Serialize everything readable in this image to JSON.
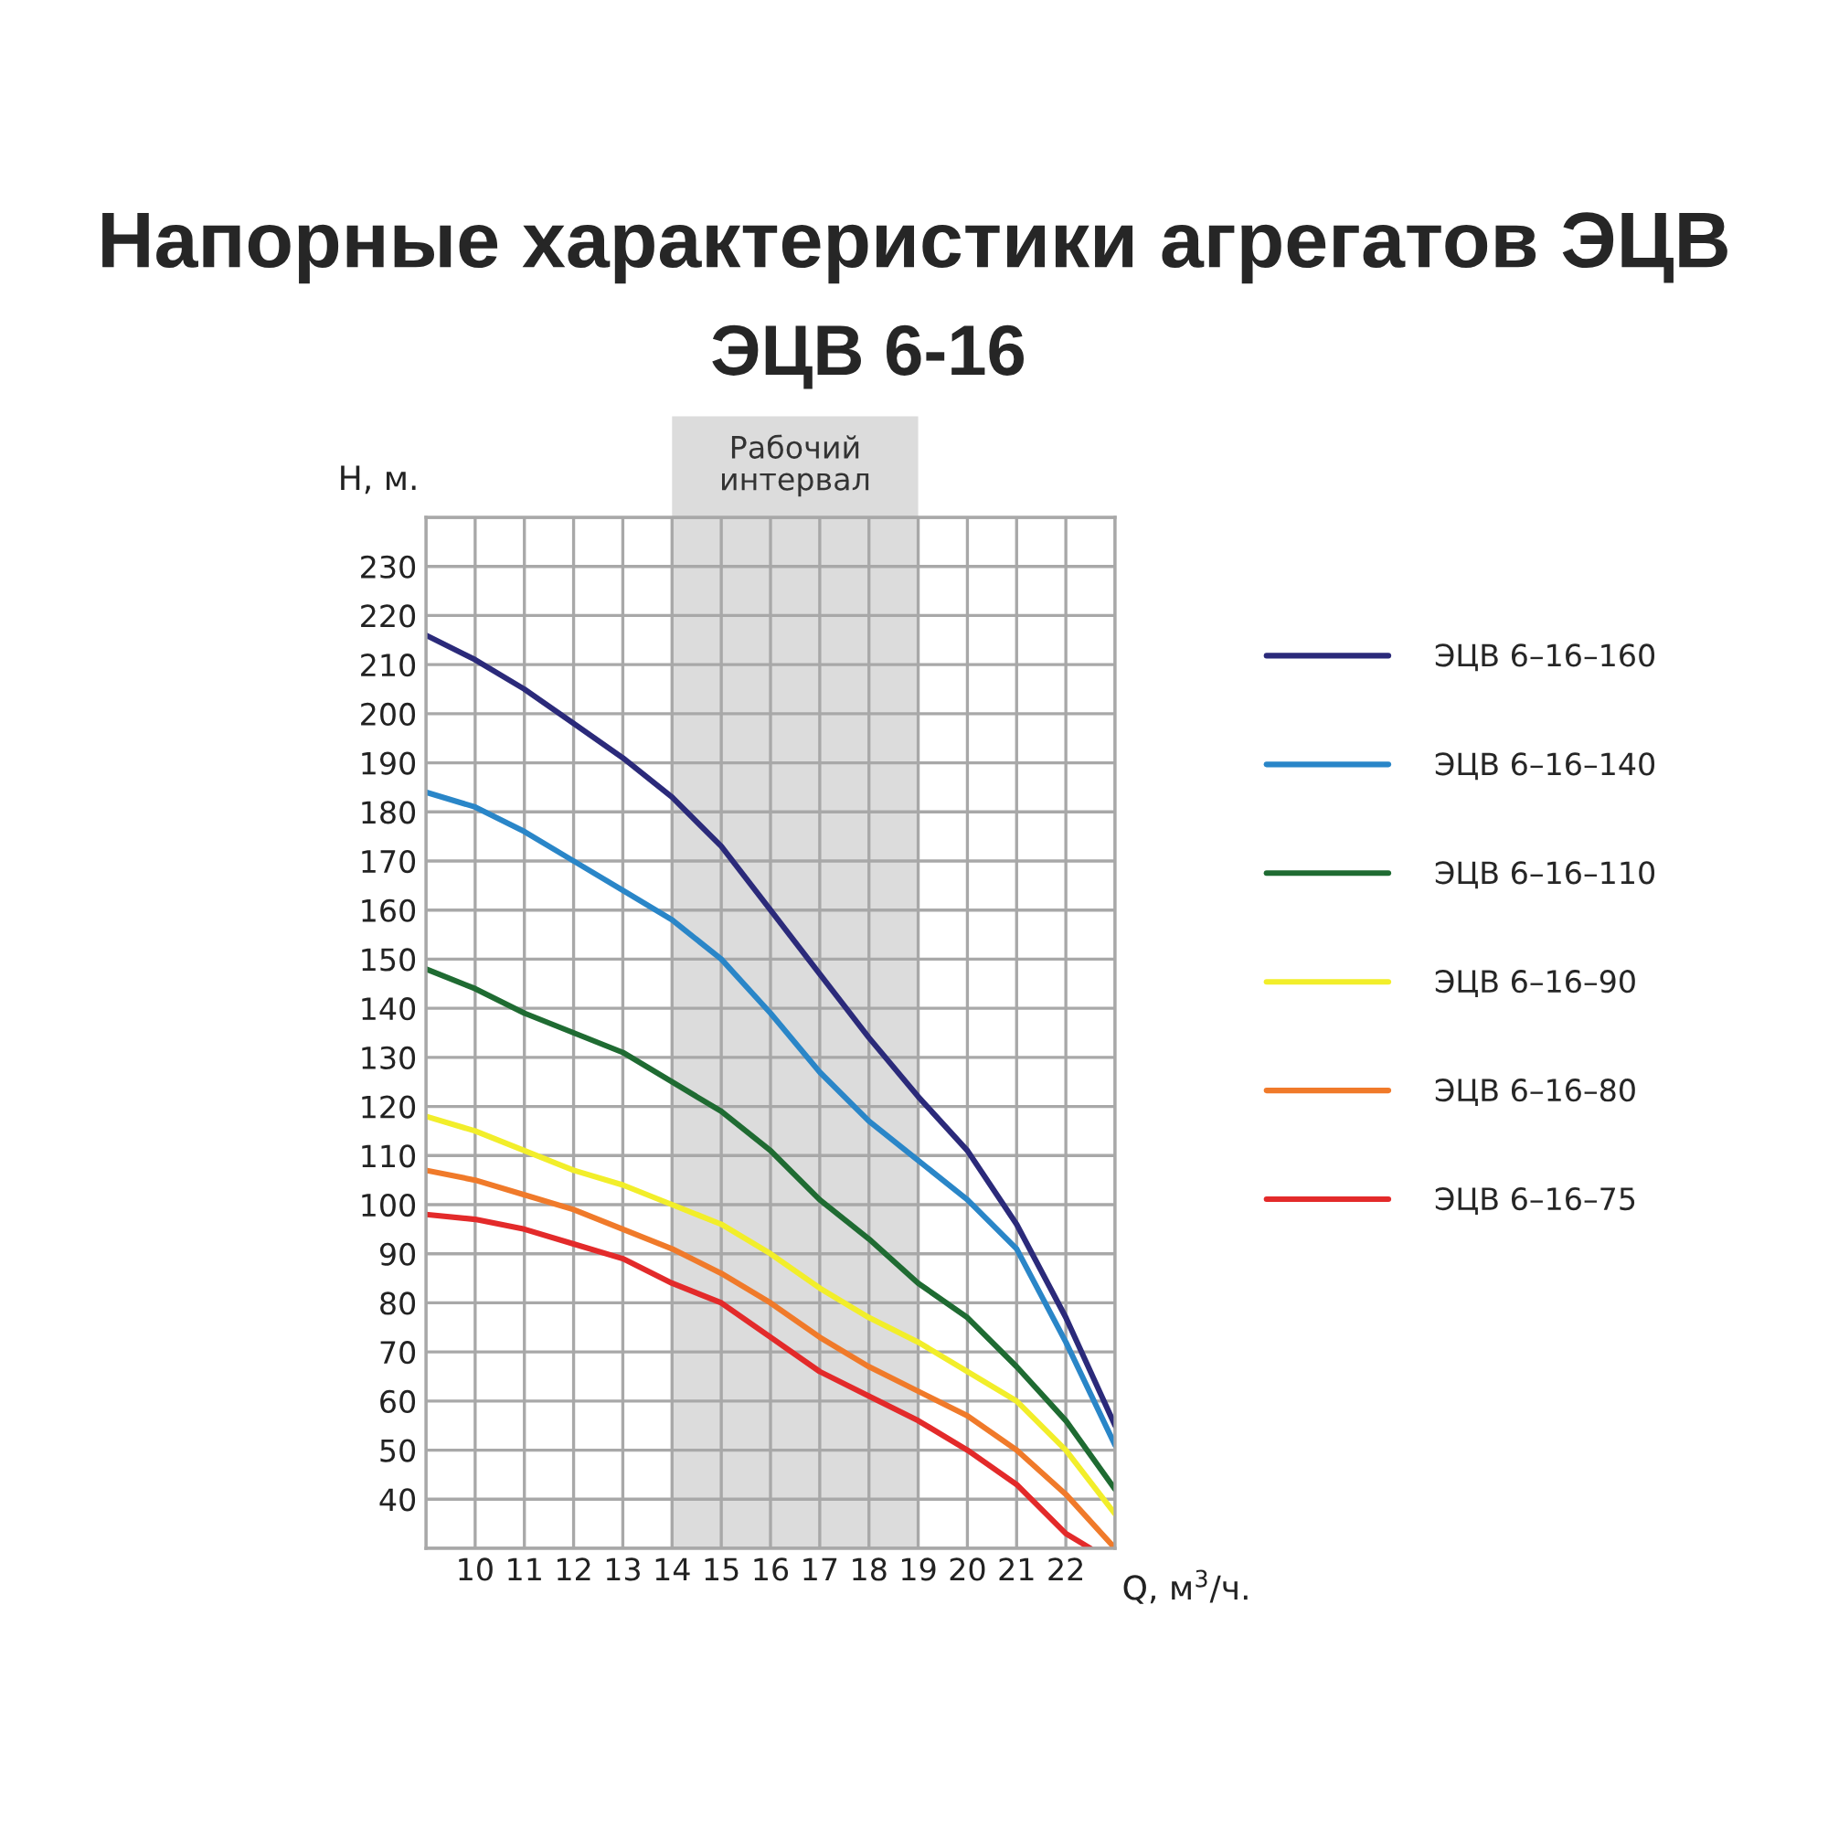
{
  "chart_data": {
    "type": "line",
    "title": "Напорные характеристики агрегатов ЭЦВ",
    "subtitle": "ЭЦВ 6-16",
    "xlabel": "Q, м$^{3}$/ч.",
    "ylabel": "H, м.",
    "x": [
      9,
      10,
      11,
      12,
      13,
      14,
      15,
      16,
      17,
      18,
      19,
      20,
      21,
      22,
      23
    ],
    "series": [
      {
        "name": "ЭЦВ 6–16–160",
        "color": "#2b2a7a",
        "values": [
          216,
          211,
          205,
          198,
          191,
          183,
          173,
          160,
          147,
          134,
          122,
          111,
          96,
          77,
          55
        ]
      },
      {
        "name": "ЭЦВ 6–16–140",
        "color": "#2a86c8",
        "values": [
          184,
          181,
          176,
          170,
          164,
          158,
          150,
          139,
          127,
          117,
          109,
          101,
          91,
          72,
          51
        ]
      },
      {
        "name": "ЭЦВ 6–16–110",
        "color": "#1f6b32",
        "values": [
          148,
          144,
          139,
          135,
          131,
          125,
          119,
          111,
          101,
          93,
          84,
          77,
          67,
          56,
          42
        ]
      },
      {
        "name": "ЭЦВ 6–16–90",
        "color": "#f2ee2a",
        "values": [
          118,
          115,
          111,
          107,
          104,
          100,
          96,
          90,
          83,
          77,
          72,
          66,
          60,
          50,
          37
        ]
      },
      {
        "name": "ЭЦВ 6–16–80",
        "color": "#f07a2a",
        "values": [
          107,
          105,
          102,
          99,
          95,
          91,
          86,
          80,
          73,
          67,
          62,
          57,
          50,
          41,
          30
        ]
      },
      {
        "name": "ЭЦВ 6–16–75",
        "color": "#e32a2a",
        "x": [
          9,
          10,
          11,
          12,
          13,
          14,
          15,
          16,
          17,
          18,
          19,
          20,
          21,
          22,
          22.5
        ],
        "values": [
          98,
          97,
          95,
          92,
          89,
          84,
          80,
          73,
          66,
          61,
          56,
          50,
          43,
          33,
          30
        ]
      }
    ],
    "xlim": [
      9,
      23
    ],
    "xticks": [
      {
        "value": 9,
        "label": null
      },
      10,
      11,
      12,
      13,
      14,
      15,
      16,
      17,
      18,
      19,
      20,
      21,
      22,
      {
        "value": 23,
        "label": null
      }
    ],
    "ylim": [
      30,
      240
    ],
    "yticks": [
      {
        "value": 30,
        "label": null
      },
      40,
      50,
      60,
      70,
      80,
      90,
      100,
      110,
      120,
      130,
      140,
      150,
      160,
      170,
      180,
      190,
      200,
      210,
      220,
      230,
      {
        "value": 240,
        "label": null
      }
    ],
    "bands": [
      {
        "axis": "x",
        "from": 14,
        "to": 19,
        "label": "Рабочий\nинтервал",
        "color": "#dcdcdc"
      }
    ],
    "grid": true,
    "legend": "right",
    "marker": "none",
    "line_style": "solid"
  }
}
